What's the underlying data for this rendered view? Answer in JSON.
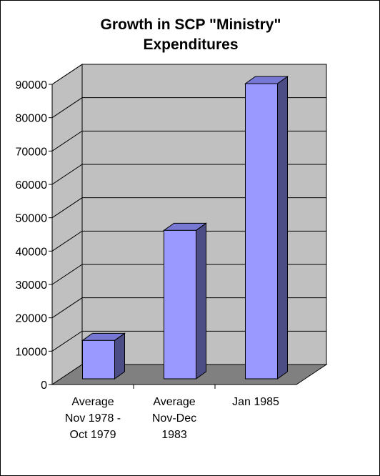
{
  "chart_data": {
    "type": "bar",
    "title": [
      "Growth in SCP \"Ministry\"",
      "Expenditures"
    ],
    "categories": [
      [
        "Average",
        "Nov 1978 -",
        "Oct 1979"
      ],
      [
        "Average",
        "Nov-Dec",
        "1983"
      ],
      [
        "Jan 1985"
      ]
    ],
    "values": [
      11500,
      44500,
      88500
    ],
    "ylim": [
      0,
      90000
    ],
    "yticks": [
      "0",
      "10000",
      "20000",
      "30000",
      "40000",
      "50000",
      "60000",
      "70000",
      "80000",
      "90000"
    ],
    "grid": true,
    "legend": "none",
    "colors": {
      "bar_front": "#9999ff",
      "bar_side": "#4d4d86",
      "bar_top": "#7777d4",
      "wall": "#c0c0c0",
      "floor": "#808080",
      "gridline": "#000000"
    }
  }
}
